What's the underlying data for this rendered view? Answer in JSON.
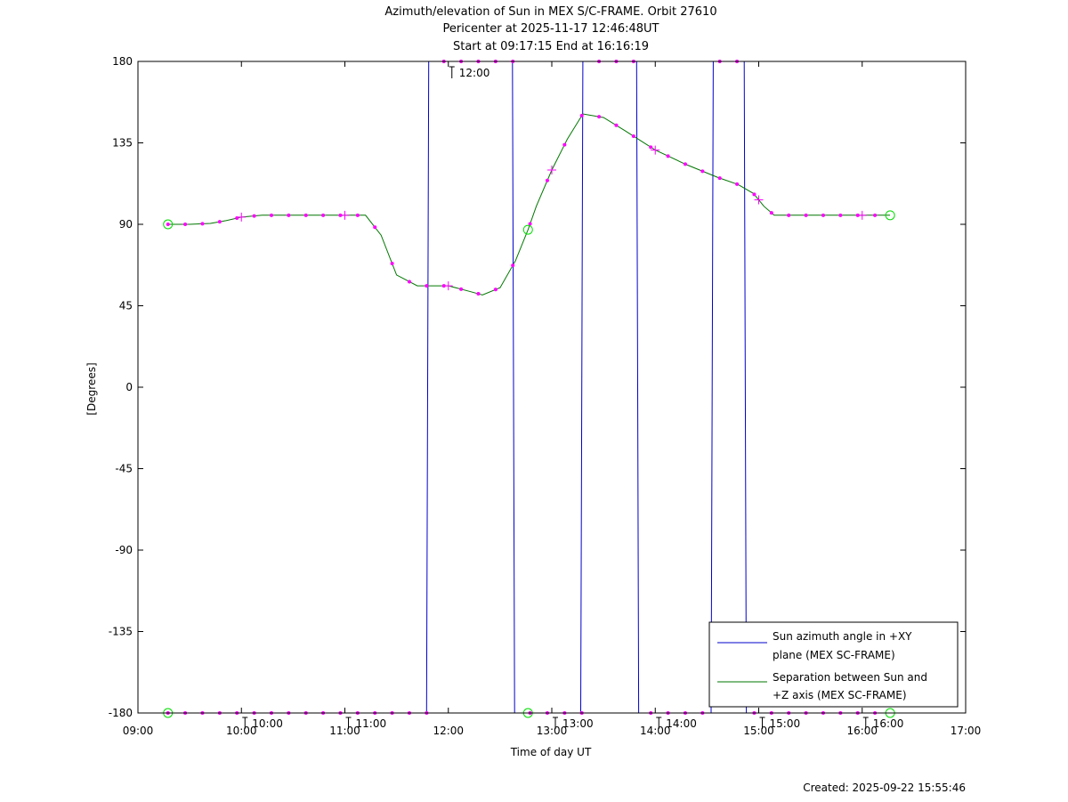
{
  "chart_data": {
    "type": "line",
    "title": "Azimuth/elevation of Sun in MEX S/C-FRAME.  Orbit 27610",
    "subtitle_1": "Pericenter at 2025-11-17 12:46:48UT",
    "subtitle_2": "Start at 09:17:15 End at 16:16:19",
    "xlabel": "Time of day UT",
    "ylabel": "[Degrees]",
    "created": "Created: 2025-09-22 15:55:46",
    "xlim": [
      9.0,
      17.0
    ],
    "ylim": [
      -180,
      180
    ],
    "x_ticks": [
      {
        "v": 9,
        "label": "09:00"
      },
      {
        "v": 10,
        "label": "10:00"
      },
      {
        "v": 11,
        "label": "11:00"
      },
      {
        "v": 12,
        "label": "12:00"
      },
      {
        "v": 13,
        "label": "13:00"
      },
      {
        "v": 14,
        "label": "14:00"
      },
      {
        "v": 15,
        "label": "15:00"
      },
      {
        "v": 16,
        "label": "16:00"
      },
      {
        "v": 17,
        "label": "17:00"
      }
    ],
    "y_ticks": [
      {
        "v": 180,
        "label": "180"
      },
      {
        "v": 135,
        "label": "135"
      },
      {
        "v": 90,
        "label": "90"
      },
      {
        "v": 45,
        "label": "45"
      },
      {
        "v": 0,
        "label": "0"
      },
      {
        "v": -45,
        "label": "-45"
      },
      {
        "v": -90,
        "label": "-90"
      },
      {
        "v": -135,
        "label": "-135"
      },
      {
        "v": -180,
        "label": "-180"
      }
    ],
    "hour_annotations": [
      {
        "x": 10.0,
        "y": -180,
        "label": "10:00"
      },
      {
        "x": 11.0,
        "y": -180,
        "label": "11:00"
      },
      {
        "x": 12.0,
        "y": 180,
        "label": "12:00"
      },
      {
        "x": 13.0,
        "y": -180,
        "label": "13:00"
      },
      {
        "x": 14.0,
        "y": -180,
        "label": "14:00"
      },
      {
        "x": 15.0,
        "y": -180,
        "label": "15:00"
      },
      {
        "x": 16.0,
        "y": -180,
        "label": "16:00"
      }
    ],
    "legend_placement": "bottom-right",
    "series": [
      {
        "name": "Sun azimuth angle in +XY plane (MEX SC-FRAME)",
        "color": "#0000cc",
        "x": [
          9.29,
          11.79,
          11.8,
          11.81,
          12.62,
          12.63,
          12.64,
          13.28,
          13.29,
          13.3,
          13.82,
          13.83,
          13.84,
          14.54,
          14.55,
          14.56,
          14.86,
          14.87,
          14.88,
          16.27
        ],
        "y": [
          -180,
          -180,
          0,
          180,
          180,
          0,
          -180,
          -180,
          0,
          180,
          180,
          0,
          -180,
          -180,
          0,
          180,
          180,
          0,
          -180,
          -180
        ]
      },
      {
        "name": "Separation between Sun and +Z axis (MEX SC-FRAME)",
        "color": "#007700",
        "x": [
          9.29,
          9.5,
          9.7,
          9.85,
          10.0,
          10.2,
          10.5,
          11.0,
          11.2,
          11.35,
          11.5,
          11.7,
          12.0,
          12.2,
          12.33,
          12.5,
          12.65,
          12.77,
          12.85,
          13.0,
          13.15,
          13.3,
          13.5,
          13.7,
          14.0,
          14.3,
          14.6,
          14.8,
          14.95,
          15.05,
          15.15,
          15.3,
          16.0,
          16.27
        ],
        "y": [
          90,
          90,
          90.5,
          92,
          94,
          95,
          95,
          95,
          95,
          84,
          62,
          56,
          56,
          53,
          51,
          55,
          70,
          87,
          100,
          120,
          137,
          151,
          149,
          142,
          131,
          123,
          116,
          112,
          107,
          100,
          95,
          95,
          95,
          95
        ]
      }
    ],
    "legend": {
      "entry1_line1": "Sun azimuth angle in +XY",
      "entry1_line2": "plane (MEX SC-FRAME)",
      "entry2_line1": "Separation between Sun and",
      "entry2_line2": "+Z axis (MEX SC-FRAME)"
    }
  }
}
